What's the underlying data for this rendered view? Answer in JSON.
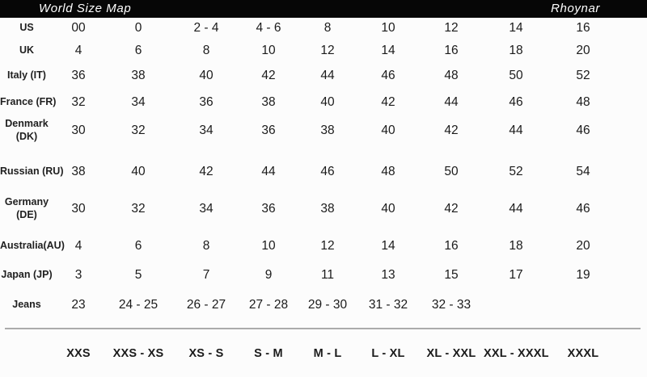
{
  "header": {
    "title": "World Size Map",
    "brand": "Rhoynar"
  },
  "colors": {
    "header_bg": "#060606",
    "header_text": "#ffffff",
    "body_text": "#1b1b1b",
    "separator": "#a2a2a2",
    "page_bg": "#fcfcfc"
  },
  "table": {
    "rows": [
      {
        "key": "us",
        "label": "US",
        "label2": "",
        "values": [
          "00",
          "0",
          "2 - 4",
          "4 - 6",
          "8",
          "10",
          "12",
          "14",
          "16"
        ]
      },
      {
        "key": "uk",
        "label": "UK",
        "label2": "",
        "values": [
          "4",
          "6",
          "8",
          "10",
          "12",
          "14",
          "16",
          "18",
          "20"
        ]
      },
      {
        "key": "italy",
        "label": "Italy (IT)",
        "label2": "",
        "values": [
          "36",
          "38",
          "40",
          "42",
          "44",
          "46",
          "48",
          "50",
          "52"
        ]
      },
      {
        "key": "france",
        "label": "France (FR)",
        "label2": "",
        "values": [
          "32",
          "34",
          "36",
          "38",
          "40",
          "42",
          "44",
          "46",
          "48"
        ]
      },
      {
        "key": "denmark",
        "label": "Denmark",
        "label2": "(DK)",
        "values": [
          "30",
          "32",
          "34",
          "36",
          "38",
          "40",
          "42",
          "44",
          "46"
        ]
      },
      {
        "key": "russian",
        "label": "Russian (RU)",
        "label2": "",
        "values": [
          "38",
          "40",
          "42",
          "44",
          "46",
          "48",
          "50",
          "52",
          "54"
        ]
      },
      {
        "key": "germany",
        "label": "Germany",
        "label2": "(DE)",
        "values": [
          "30",
          "32",
          "34",
          "36",
          "38",
          "40",
          "42",
          "44",
          "46"
        ]
      },
      {
        "key": "australia",
        "label": "Australia(AU)",
        "label2": "",
        "values": [
          "4",
          "6",
          "8",
          "10",
          "12",
          "14",
          "16",
          "18",
          "20"
        ]
      },
      {
        "key": "japan",
        "label": "Japan (JP)",
        "label2": "",
        "values": [
          "3",
          "5",
          "7",
          "9",
          "11",
          "13",
          "15",
          "17",
          "19"
        ]
      },
      {
        "key": "jeans",
        "label": "Jeans",
        "label2": "",
        "values": [
          "23",
          "24 - 25",
          "26 - 27",
          "27 - 28",
          "29 - 30",
          "31 - 32",
          "32 - 33",
          "",
          ""
        ]
      }
    ],
    "size_labels": [
      "XXS",
      "XXS - XS",
      "XS - S",
      "S - M",
      "M - L",
      "L - XL",
      "XL - XXL",
      "XXL - XXXL",
      "XXXL"
    ]
  }
}
